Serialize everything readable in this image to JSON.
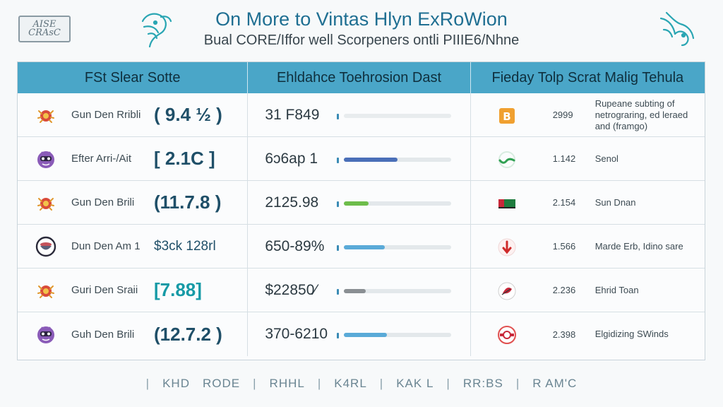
{
  "header": {
    "title": "On More to Vintas Hlyn ExRoWion",
    "subtitle": "Bual CORE/Iffor well Scorpeners ontli PIIIE6/Nhne",
    "logo_text": "AISE CRAsC",
    "left_icon": "hummingbird-icon",
    "right_icon": "hummingbird-icon"
  },
  "columns": [
    "FSt Slear Sotte",
    "Ehldahce Toehrosion Dast",
    "Fieday Tolp Scrat Malig Tehula"
  ],
  "rows": [
    {
      "avatar": "crab-icon",
      "name": "Gun Den Rribli",
      "score": "( 9.4 ½ )",
      "score_style": "dark",
      "estimate": "31 F849",
      "progress": 0.0,
      "bar_color": "#4a7fc0",
      "cell_icon": "bitcoin-icon",
      "code": "2999",
      "note": "Rupeane subting of netrograring, ed leraed and (framgo)"
    },
    {
      "avatar": "robot-face-icon",
      "name": "Efter Arri-/Ait",
      "score": "[ 2.1C ]",
      "score_style": "dark",
      "estimate": "6ɔ6ap 1",
      "progress": 0.5,
      "bar_color": "#4a6fb8",
      "cell_icon": "check-swirl-icon",
      "code": "1.142",
      "note": "Senol"
    },
    {
      "avatar": "crab-icon",
      "name": "Gun Den Brili",
      "score": "(11.7.8 )",
      "score_style": "dark",
      "estimate": "2125.98",
      "progress": 0.23,
      "bar_color": "#6dbd4a",
      "cell_icon": "flag-icon",
      "code": "2.154",
      "note": "Sun Dnan"
    },
    {
      "avatar": "bowl-icon",
      "name": "Dun Den Am 1",
      "score": "$3ck 128rl",
      "score_style": "dark-small",
      "estimate": "650-89%",
      "progress": 0.38,
      "bar_color": "#5aaad8",
      "cell_icon": "arrow-down-icon",
      "code": "1.566",
      "note": "Marde Erb, Idino sare"
    },
    {
      "avatar": "crab-icon",
      "name": "Guri Den Sraii",
      "score": "[7.88]",
      "score_style": "teal",
      "estimate": "$22850⁄",
      "progress": 0.2,
      "bar_color": "#8a8f93",
      "cell_icon": "leaf-badge-icon",
      "code": "2.236",
      "note": "Ehrid Toan"
    },
    {
      "avatar": "robot-face-icon",
      "name": "Guh Den Brili",
      "score": "(12.7.2 )",
      "score_style": "dark",
      "estimate": "370-6210",
      "progress": 0.4,
      "bar_color": "#5aaad8",
      "cell_icon": "target-icon",
      "code": "2.398",
      "note": "Elgidizing SWinds"
    }
  ],
  "footer": {
    "items": [
      "KHD",
      "RODE",
      "RHHL",
      "K4RL",
      "KAK L",
      "RR:BS",
      "R AM'C"
    ]
  }
}
